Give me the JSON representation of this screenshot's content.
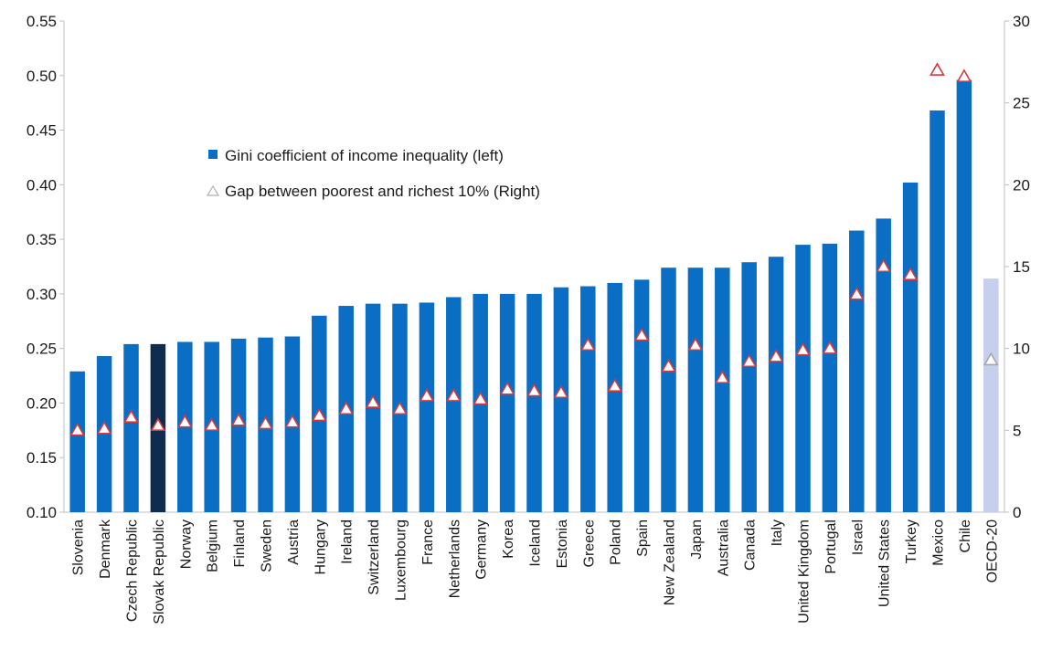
{
  "chart_data": {
    "type": "bar",
    "title": "",
    "xlabel": "",
    "ylabel": "",
    "y_left_ticks": [
      "0.10",
      "0.15",
      "0.20",
      "0.25",
      "0.30",
      "0.35",
      "0.40",
      "0.45",
      "0.50",
      "0.55"
    ],
    "y_right_ticks": [
      "0",
      "5",
      "10",
      "15",
      "20",
      "25",
      "30"
    ],
    "ylim_left": [
      0.1,
      0.55
    ],
    "ylim_right": [
      0,
      30
    ],
    "grid": false,
    "legend_position": "upper-left-center",
    "categories": [
      "Slovenia",
      "Denmark",
      "Czech Republic",
      "Slovak Republic",
      "Norway",
      "Belgium",
      "Finland",
      "Sweden",
      "Austria",
      "Hungary",
      "Ireland",
      "Switzerland",
      "Luxembourg",
      "France",
      "Netherlands",
      "Germany",
      "Korea",
      "Iceland",
      "Estonia",
      "Greece",
      "Poland",
      "Spain",
      "New Zealand",
      "Japan",
      "Australia",
      "Canada",
      "Italy",
      "United Kingdom",
      "Portugal",
      "Israel",
      "United States",
      "Turkey",
      "Mexico",
      "Chile",
      "OECD-20"
    ],
    "series": [
      {
        "name": "Gini coefficient of income inequality (left)",
        "axis": "left",
        "marker": "bar",
        "values": [
          0.229,
          0.243,
          0.254,
          0.254,
          0.256,
          0.256,
          0.259,
          0.26,
          0.261,
          0.28,
          0.289,
          0.291,
          0.291,
          0.292,
          0.297,
          0.3,
          0.3,
          0.3,
          0.306,
          0.307,
          0.31,
          0.313,
          0.324,
          0.324,
          0.324,
          0.329,
          0.334,
          0.345,
          0.346,
          0.358,
          0.369,
          0.402,
          0.468,
          0.496,
          0.314
        ]
      },
      {
        "name": "Gap between poorest and richest 10% (Right)",
        "axis": "right",
        "marker": "triangle",
        "values": [
          5.0,
          5.1,
          5.8,
          5.3,
          5.5,
          5.3,
          5.6,
          5.4,
          5.5,
          5.9,
          6.3,
          6.7,
          6.3,
          7.1,
          7.1,
          6.9,
          7.5,
          7.4,
          7.3,
          10.2,
          7.7,
          10.8,
          8.9,
          10.2,
          8.2,
          9.2,
          9.5,
          9.9,
          10.0,
          13.3,
          15.0,
          14.5,
          27.0,
          26.6,
          9.3
        ]
      }
    ],
    "colors": {
      "bar": "#0a6ec4",
      "bar_highlight": "#0f2b4d",
      "bar_oecd": "#c6d0ee",
      "marker_stroke": "#d83a3a",
      "marker_fill": "#ffffff",
      "oecd_marker_stroke": "#a7a7a7"
    },
    "highlight_category": "Slovak Republic",
    "reference_category": "OECD-20"
  }
}
